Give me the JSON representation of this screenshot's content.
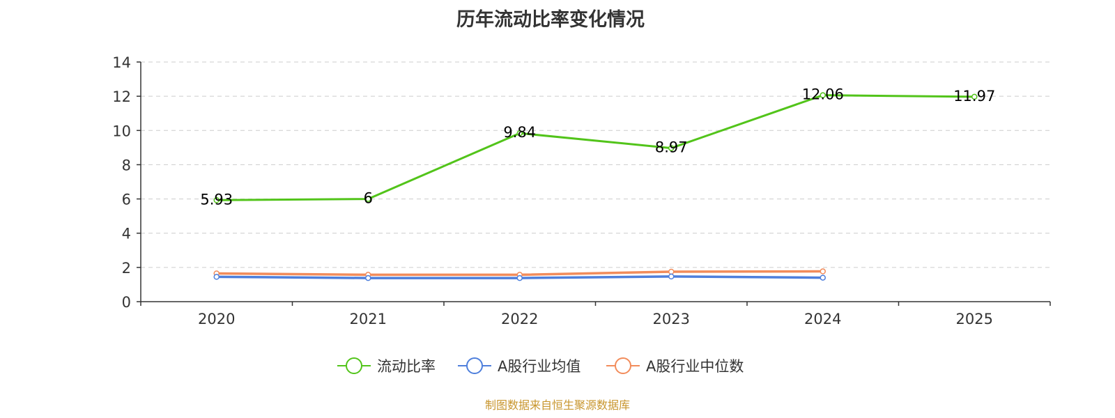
{
  "chart_data": {
    "type": "line",
    "title": "历年流动比率变化情况",
    "categories": [
      "2020",
      "2021",
      "2022",
      "2023",
      "2024",
      "2025"
    ],
    "ylim": [
      0,
      14
    ],
    "yticks": [
      0,
      2,
      4,
      6,
      8,
      10,
      12,
      14
    ],
    "grid": true,
    "legend_position": "bottom",
    "series": [
      {
        "name": "流动比率",
        "color": "#52c41a",
        "values": [
          5.93,
          6,
          9.84,
          8.97,
          12.06,
          11.97
        ],
        "labels": [
          "5.93",
          "6",
          "9.84",
          "8.97",
          "12.06",
          "11.97"
        ]
      },
      {
        "name": "A股行业均值",
        "color": "#4e7fdc",
        "values": [
          1.45,
          1.38,
          1.38,
          1.47,
          1.4,
          null
        ]
      },
      {
        "name": "A股行业中位数",
        "color": "#f28c5b",
        "values": [
          1.65,
          1.57,
          1.57,
          1.75,
          1.77,
          null
        ]
      }
    ]
  },
  "footer": {
    "source": "制图数据来自恒生聚源数据库"
  }
}
